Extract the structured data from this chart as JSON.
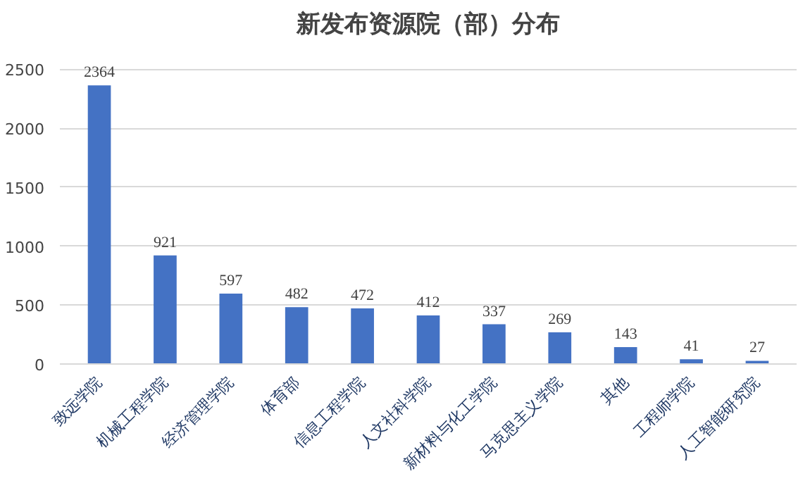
{
  "chart_data": {
    "type": "bar",
    "title": "新发布资源院（部）分布",
    "categories": [
      "致远学院",
      "机械工程学院",
      "经济管理学院",
      "体育部",
      "信息工程学院",
      "人文社科学院",
      "新材料与化工学院",
      "马克思主义学院",
      "其他",
      "工程师学院",
      "人工智能研究院"
    ],
    "values": [
      2364,
      921,
      597,
      482,
      472,
      412,
      337,
      269,
      143,
      41,
      27
    ],
    "color": "#4472c4",
    "ylim": [
      0,
      2500
    ],
    "yticks": [
      0,
      500,
      1000,
      1500,
      2000,
      2500
    ],
    "grid": "y",
    "data_labels": true
  }
}
